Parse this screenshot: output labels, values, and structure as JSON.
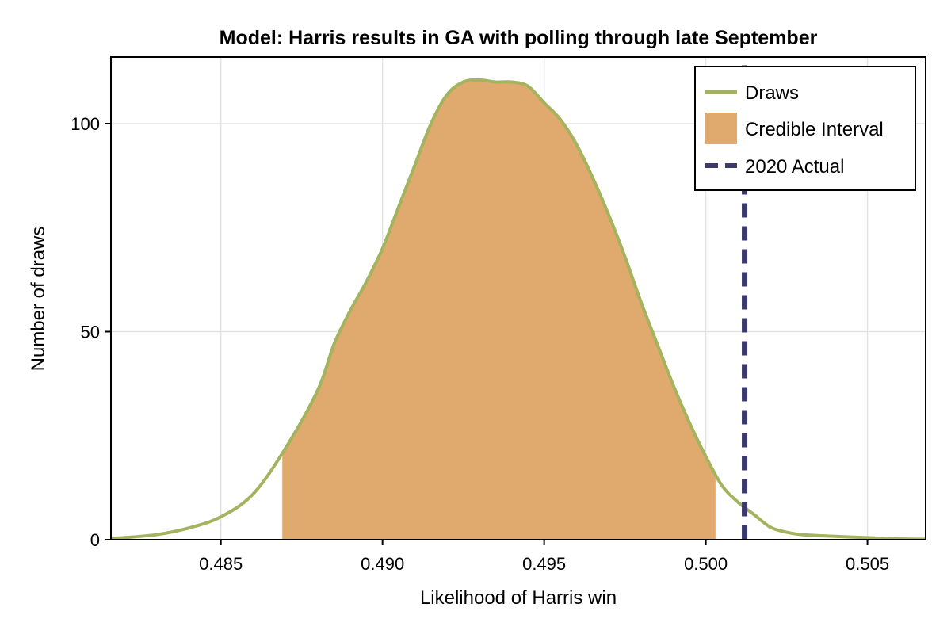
{
  "chart_data": {
    "type": "area",
    "title": "Model: Harris results in GA with polling through late September",
    "xlabel": "Likelihood of Harris win",
    "ylabel": "Number of draws",
    "xlim": [
      0.4816,
      0.5068
    ],
    "ylim": [
      0,
      116
    ],
    "x_ticks": [
      0.485,
      0.49,
      0.495,
      0.5,
      0.505
    ],
    "x_tick_labels": [
      "0.485",
      "0.490",
      "0.495",
      "0.500",
      "0.505"
    ],
    "y_ticks": [
      0,
      50,
      100
    ],
    "y_tick_labels": [
      "0",
      "50",
      "100"
    ],
    "grid": true,
    "legend_position": "top-right",
    "series": [
      {
        "name": "Draws",
        "color": "#a3b35e",
        "x": [
          0.4816,
          0.482,
          0.483,
          0.484,
          0.485,
          0.486,
          0.487,
          0.488,
          0.4885,
          0.489,
          0.4895,
          0.49,
          0.4905,
          0.491,
          0.4915,
          0.492,
          0.4925,
          0.493,
          0.4935,
          0.494,
          0.4945,
          0.495,
          0.4955,
          0.496,
          0.4965,
          0.497,
          0.4975,
          0.498,
          0.4985,
          0.499,
          0.4995,
          0.5,
          0.5005,
          0.501,
          0.5015,
          0.502,
          0.5025,
          0.503,
          0.504,
          0.505,
          0.506,
          0.5068
        ],
        "y": [
          0.3,
          0.5,
          1.2,
          2.8,
          5.5,
          11,
          22,
          36,
          47,
          55,
          62,
          70,
          80,
          90,
          100,
          107,
          110,
          110.5,
          110,
          110,
          109,
          105,
          101,
          95,
          87,
          78,
          68,
          57,
          47,
          37,
          28,
          20,
          13,
          9,
          6,
          3,
          1.8,
          1.2,
          0.8,
          0.5,
          0.2,
          0.1
        ]
      }
    ],
    "credible_interval": {
      "name": "Credible Interval",
      "color": "#e0a96d",
      "x_range": [
        0.4869,
        0.5003
      ]
    },
    "reference_line": {
      "name": "2020 Actual",
      "color": "#3c3a6d",
      "x": 0.5012
    }
  }
}
